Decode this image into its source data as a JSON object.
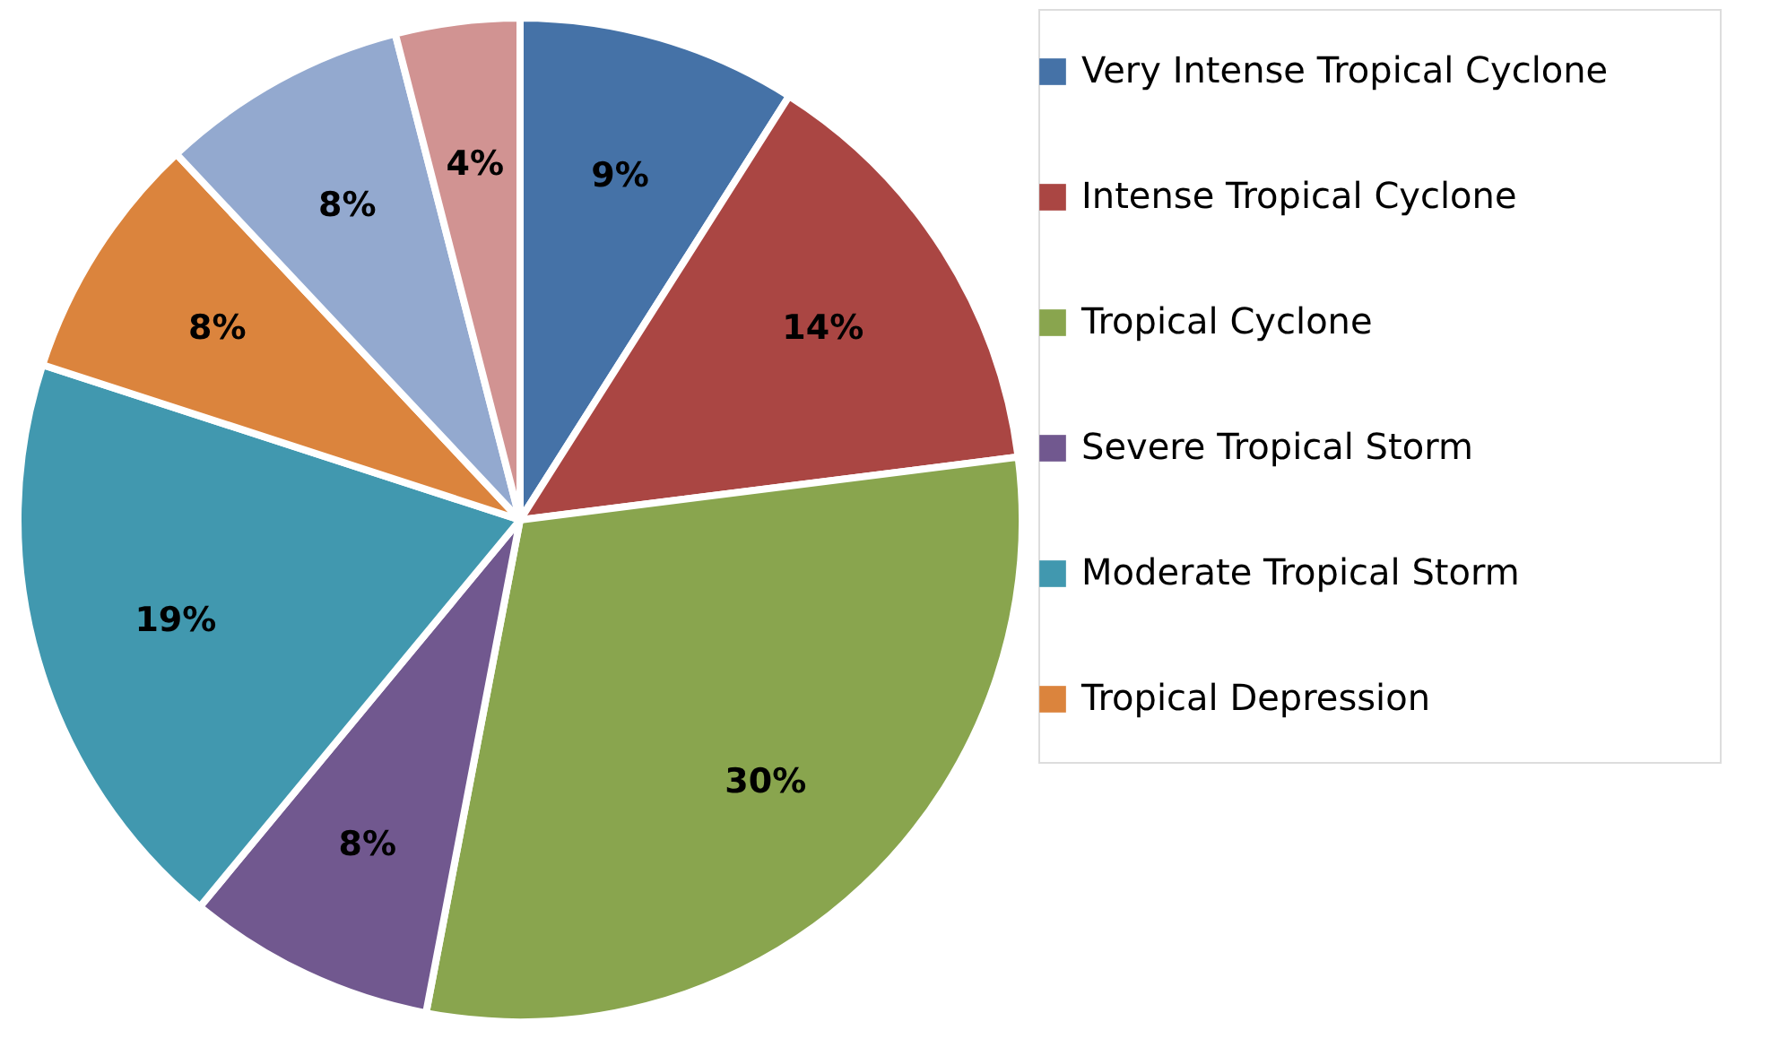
{
  "chart_data": {
    "type": "pie",
    "categories": [
      "Very Intense Tropical Cyclone",
      "Intense Tropical Cyclone",
      "Tropical Cyclone",
      "Severe Tropical Storm",
      "Moderate Tropical Storm",
      "Tropical Depression",
      null,
      null
    ],
    "values": [
      9,
      14,
      30,
      8,
      19,
      8,
      8,
      4
    ],
    "colors": [
      "#4572a7",
      "#aa4643",
      "#89a54e",
      "#71588f",
      "#4198af",
      "#db843d",
      "#93a9cf",
      "#d19392"
    ],
    "value_labels": [
      "9%",
      "14%",
      "30%",
      "8%",
      "19%",
      "8%",
      "8%",
      "4%"
    ],
    "legend": "right"
  }
}
